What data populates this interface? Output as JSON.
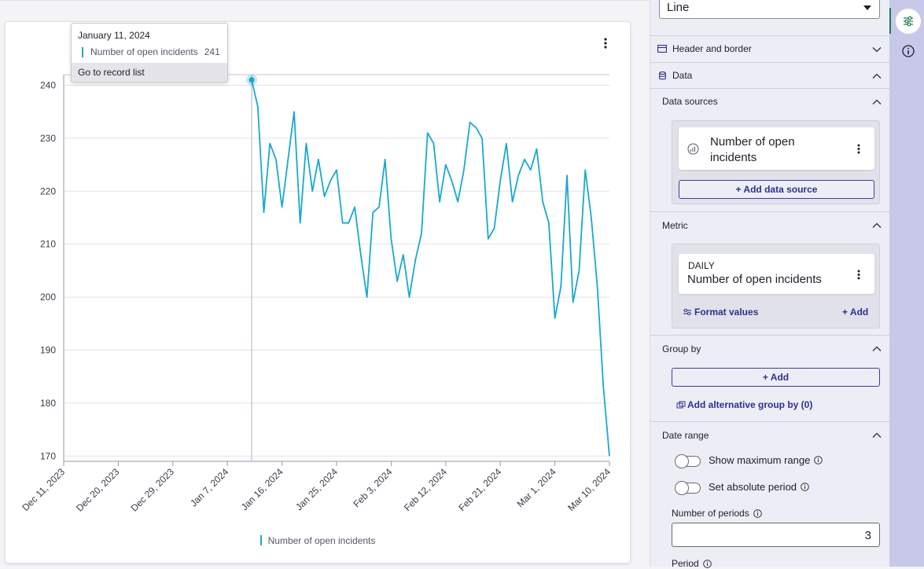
{
  "chart_data": {
    "type": "line",
    "x": [
      "Jan 11, 2024",
      "Jan 12, 2024",
      "Jan 13, 2024",
      "Jan 14, 2024",
      "Jan 15, 2024",
      "Jan 16, 2024",
      "Jan 17, 2024",
      "Jan 18, 2024",
      "Jan 19, 2024",
      "Jan 20, 2024",
      "Jan 21, 2024",
      "Jan 22, 2024",
      "Jan 23, 2024",
      "Jan 24, 2024",
      "Jan 25, 2024",
      "Jan 26, 2024",
      "Jan 27, 2024",
      "Jan 28, 2024",
      "Jan 29, 2024",
      "Jan 30, 2024",
      "Jan 31, 2024",
      "Feb 1, 2024",
      "Feb 2, 2024",
      "Feb 3, 2024",
      "Feb 4, 2024",
      "Feb 5, 2024",
      "Feb 6, 2024",
      "Feb 7, 2024",
      "Feb 8, 2024",
      "Feb 9, 2024",
      "Feb 10, 2024",
      "Feb 11, 2024",
      "Feb 12, 2024",
      "Feb 13, 2024",
      "Feb 14, 2024",
      "Feb 15, 2024",
      "Feb 16, 2024",
      "Feb 17, 2024",
      "Feb 18, 2024",
      "Feb 19, 2024",
      "Feb 20, 2024",
      "Feb 21, 2024",
      "Feb 22, 2024",
      "Feb 23, 2024",
      "Feb 24, 2024",
      "Feb 25, 2024",
      "Feb 26, 2024",
      "Feb 27, 2024",
      "Feb 28, 2024",
      "Feb 29, 2024",
      "Mar 1, 2024",
      "Mar 2, 2024",
      "Mar 3, 2024",
      "Mar 4, 2024",
      "Mar 5, 2024",
      "Mar 6, 2024",
      "Mar 7, 2024",
      "Mar 8, 2024",
      "Mar 9, 2024",
      "Mar 10, 2024"
    ],
    "series": [
      {
        "name": "Number of open incidents",
        "color": "#17a9cf",
        "values": [
          241,
          236,
          216,
          229,
          226,
          217,
          226,
          235,
          214,
          229,
          220,
          226,
          219,
          222,
          224,
          214,
          214,
          217,
          208,
          200,
          216,
          217,
          226,
          211,
          203,
          208,
          200,
          207,
          212,
          231,
          229,
          218,
          225,
          222,
          218,
          224,
          233,
          232,
          230,
          211,
          213,
          222,
          229,
          218,
          223,
          226,
          224,
          228,
          218,
          214,
          196,
          202,
          223,
          199,
          205,
          224,
          215,
          202,
          183,
          170
        ]
      }
    ],
    "x_ticks": [
      "Dec 11, 2023",
      "Dec 20, 2023",
      "Dec 29, 2023",
      "Jan 7, 2024",
      "Jan 16, 2024",
      "Jan 25, 2024",
      "Feb 3, 2024",
      "Feb 12, 2024",
      "Feb 21, 2024",
      "Mar 1, 2024",
      "Mar 10, 2024"
    ],
    "x_range": [
      "Dec 11, 2023",
      "Mar 10, 2024"
    ],
    "y_ticks": [
      170,
      180,
      190,
      200,
      210,
      220,
      230,
      240
    ],
    "ylim": [
      169,
      242
    ],
    "grid": true,
    "legend": "bottom-center",
    "highlight_x": "Jan 11, 2024"
  },
  "tooltip": {
    "date": "January 11, 2024",
    "series_name": "Number of open incidents",
    "value": "241",
    "action": "Go to record list"
  },
  "legend_label": "Number of open incidents",
  "panel": {
    "chart_type": "Line",
    "header_border": "Header and border",
    "data": "Data",
    "data_sources": "Data sources",
    "source_name": "Number of open incidents",
    "add_data_source": "+ Add data source",
    "metric": "Metric",
    "metric_period": "DAILY",
    "metric_name": "Number of open incidents",
    "format_values": "Format values",
    "add_metric": "+ Add",
    "group_by": "Group by",
    "add_group": "+ Add",
    "add_alt_group": "Add alternative group by (0)",
    "date_range": "Date range",
    "show_max_range": "Show maximum range",
    "set_absolute_period": "Set absolute period",
    "num_periods_label": "Number of periods",
    "num_periods_value": "3",
    "period_label": "Period"
  },
  "colors": {
    "accent": "#2c3194",
    "series": "#17a9cf",
    "rail": "#c8c8ea",
    "active": "#1d7a53"
  }
}
